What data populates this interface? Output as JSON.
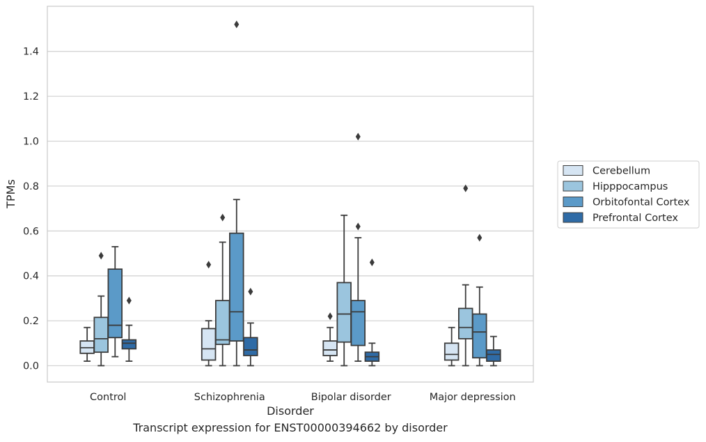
{
  "caption": "Transcript expression for ENST00000394662 by disorder",
  "chart_data": {
    "type": "box",
    "xlabel": "Disorder",
    "ylabel": "TPMs",
    "ylim": [
      -0.07,
      1.6
    ],
    "yticks": [
      0.0,
      0.2,
      0.4,
      0.6,
      0.8,
      1.0,
      1.2,
      1.4
    ],
    "ytick_labels": [
      "0.0",
      "0.2",
      "0.4",
      "0.6",
      "0.8",
      "1.0",
      "1.2",
      "1.4"
    ],
    "grid": true,
    "legend_position": "right",
    "categories": [
      "Control",
      "Schizophrenia",
      "Bipolar disorder",
      "Major depression"
    ],
    "series": [
      {
        "name": "Cerebellum",
        "color": "#d6e5f3",
        "boxes": [
          {
            "whislo": 0.02,
            "q1": 0.055,
            "med": 0.08,
            "q3": 0.11,
            "whishi": 0.17,
            "fliers": []
          },
          {
            "whislo": 0.0,
            "q1": 0.025,
            "med": 0.075,
            "q3": 0.165,
            "whishi": 0.2,
            "fliers": [
              0.45
            ]
          },
          {
            "whislo": 0.02,
            "q1": 0.045,
            "med": 0.07,
            "q3": 0.11,
            "whishi": 0.17,
            "fliers": [
              0.22
            ]
          },
          {
            "whislo": 0.0,
            "q1": 0.025,
            "med": 0.05,
            "q3": 0.1,
            "whishi": 0.17,
            "fliers": []
          }
        ]
      },
      {
        "name": "Hipppocampus",
        "color": "#9bc5de",
        "boxes": [
          {
            "whislo": 0.0,
            "q1": 0.06,
            "med": 0.12,
            "q3": 0.215,
            "whishi": 0.31,
            "fliers": [
              0.49
            ]
          },
          {
            "whislo": 0.0,
            "q1": 0.095,
            "med": 0.115,
            "q3": 0.29,
            "whishi": 0.55,
            "fliers": [
              0.66
            ]
          },
          {
            "whislo": 0.0,
            "q1": 0.105,
            "med": 0.23,
            "q3": 0.37,
            "whishi": 0.67,
            "fliers": []
          },
          {
            "whislo": 0.0,
            "q1": 0.12,
            "med": 0.17,
            "q3": 0.255,
            "whishi": 0.36,
            "fliers": [
              0.79
            ]
          }
        ]
      },
      {
        "name": "Orbitofontal Cortex",
        "color": "#5b9ac8",
        "boxes": [
          {
            "whislo": 0.04,
            "q1": 0.125,
            "med": 0.18,
            "q3": 0.43,
            "whishi": 0.53,
            "fliers": []
          },
          {
            "whislo": 0.0,
            "q1": 0.11,
            "med": 0.24,
            "q3": 0.59,
            "whishi": 0.74,
            "fliers": [
              1.52
            ]
          },
          {
            "whislo": 0.02,
            "q1": 0.09,
            "med": 0.24,
            "q3": 0.29,
            "whishi": 0.57,
            "fliers": [
              0.62,
              1.02
            ]
          },
          {
            "whislo": 0.0,
            "q1": 0.035,
            "med": 0.15,
            "q3": 0.23,
            "whishi": 0.35,
            "fliers": [
              0.57
            ]
          }
        ]
      },
      {
        "name": "Prefrontal Cortex",
        "color": "#2f6ba6",
        "boxes": [
          {
            "whislo": 0.02,
            "q1": 0.075,
            "med": 0.1,
            "q3": 0.115,
            "whishi": 0.18,
            "fliers": [
              0.29
            ]
          },
          {
            "whislo": 0.0,
            "q1": 0.045,
            "med": 0.07,
            "q3": 0.125,
            "whishi": 0.19,
            "fliers": [
              0.33
            ]
          },
          {
            "whislo": 0.0,
            "q1": 0.02,
            "med": 0.04,
            "q3": 0.06,
            "whishi": 0.1,
            "fliers": [
              0.46
            ]
          },
          {
            "whislo": 0.0,
            "q1": 0.02,
            "med": 0.05,
            "q3": 0.07,
            "whishi": 0.13,
            "fliers": []
          }
        ]
      }
    ]
  }
}
